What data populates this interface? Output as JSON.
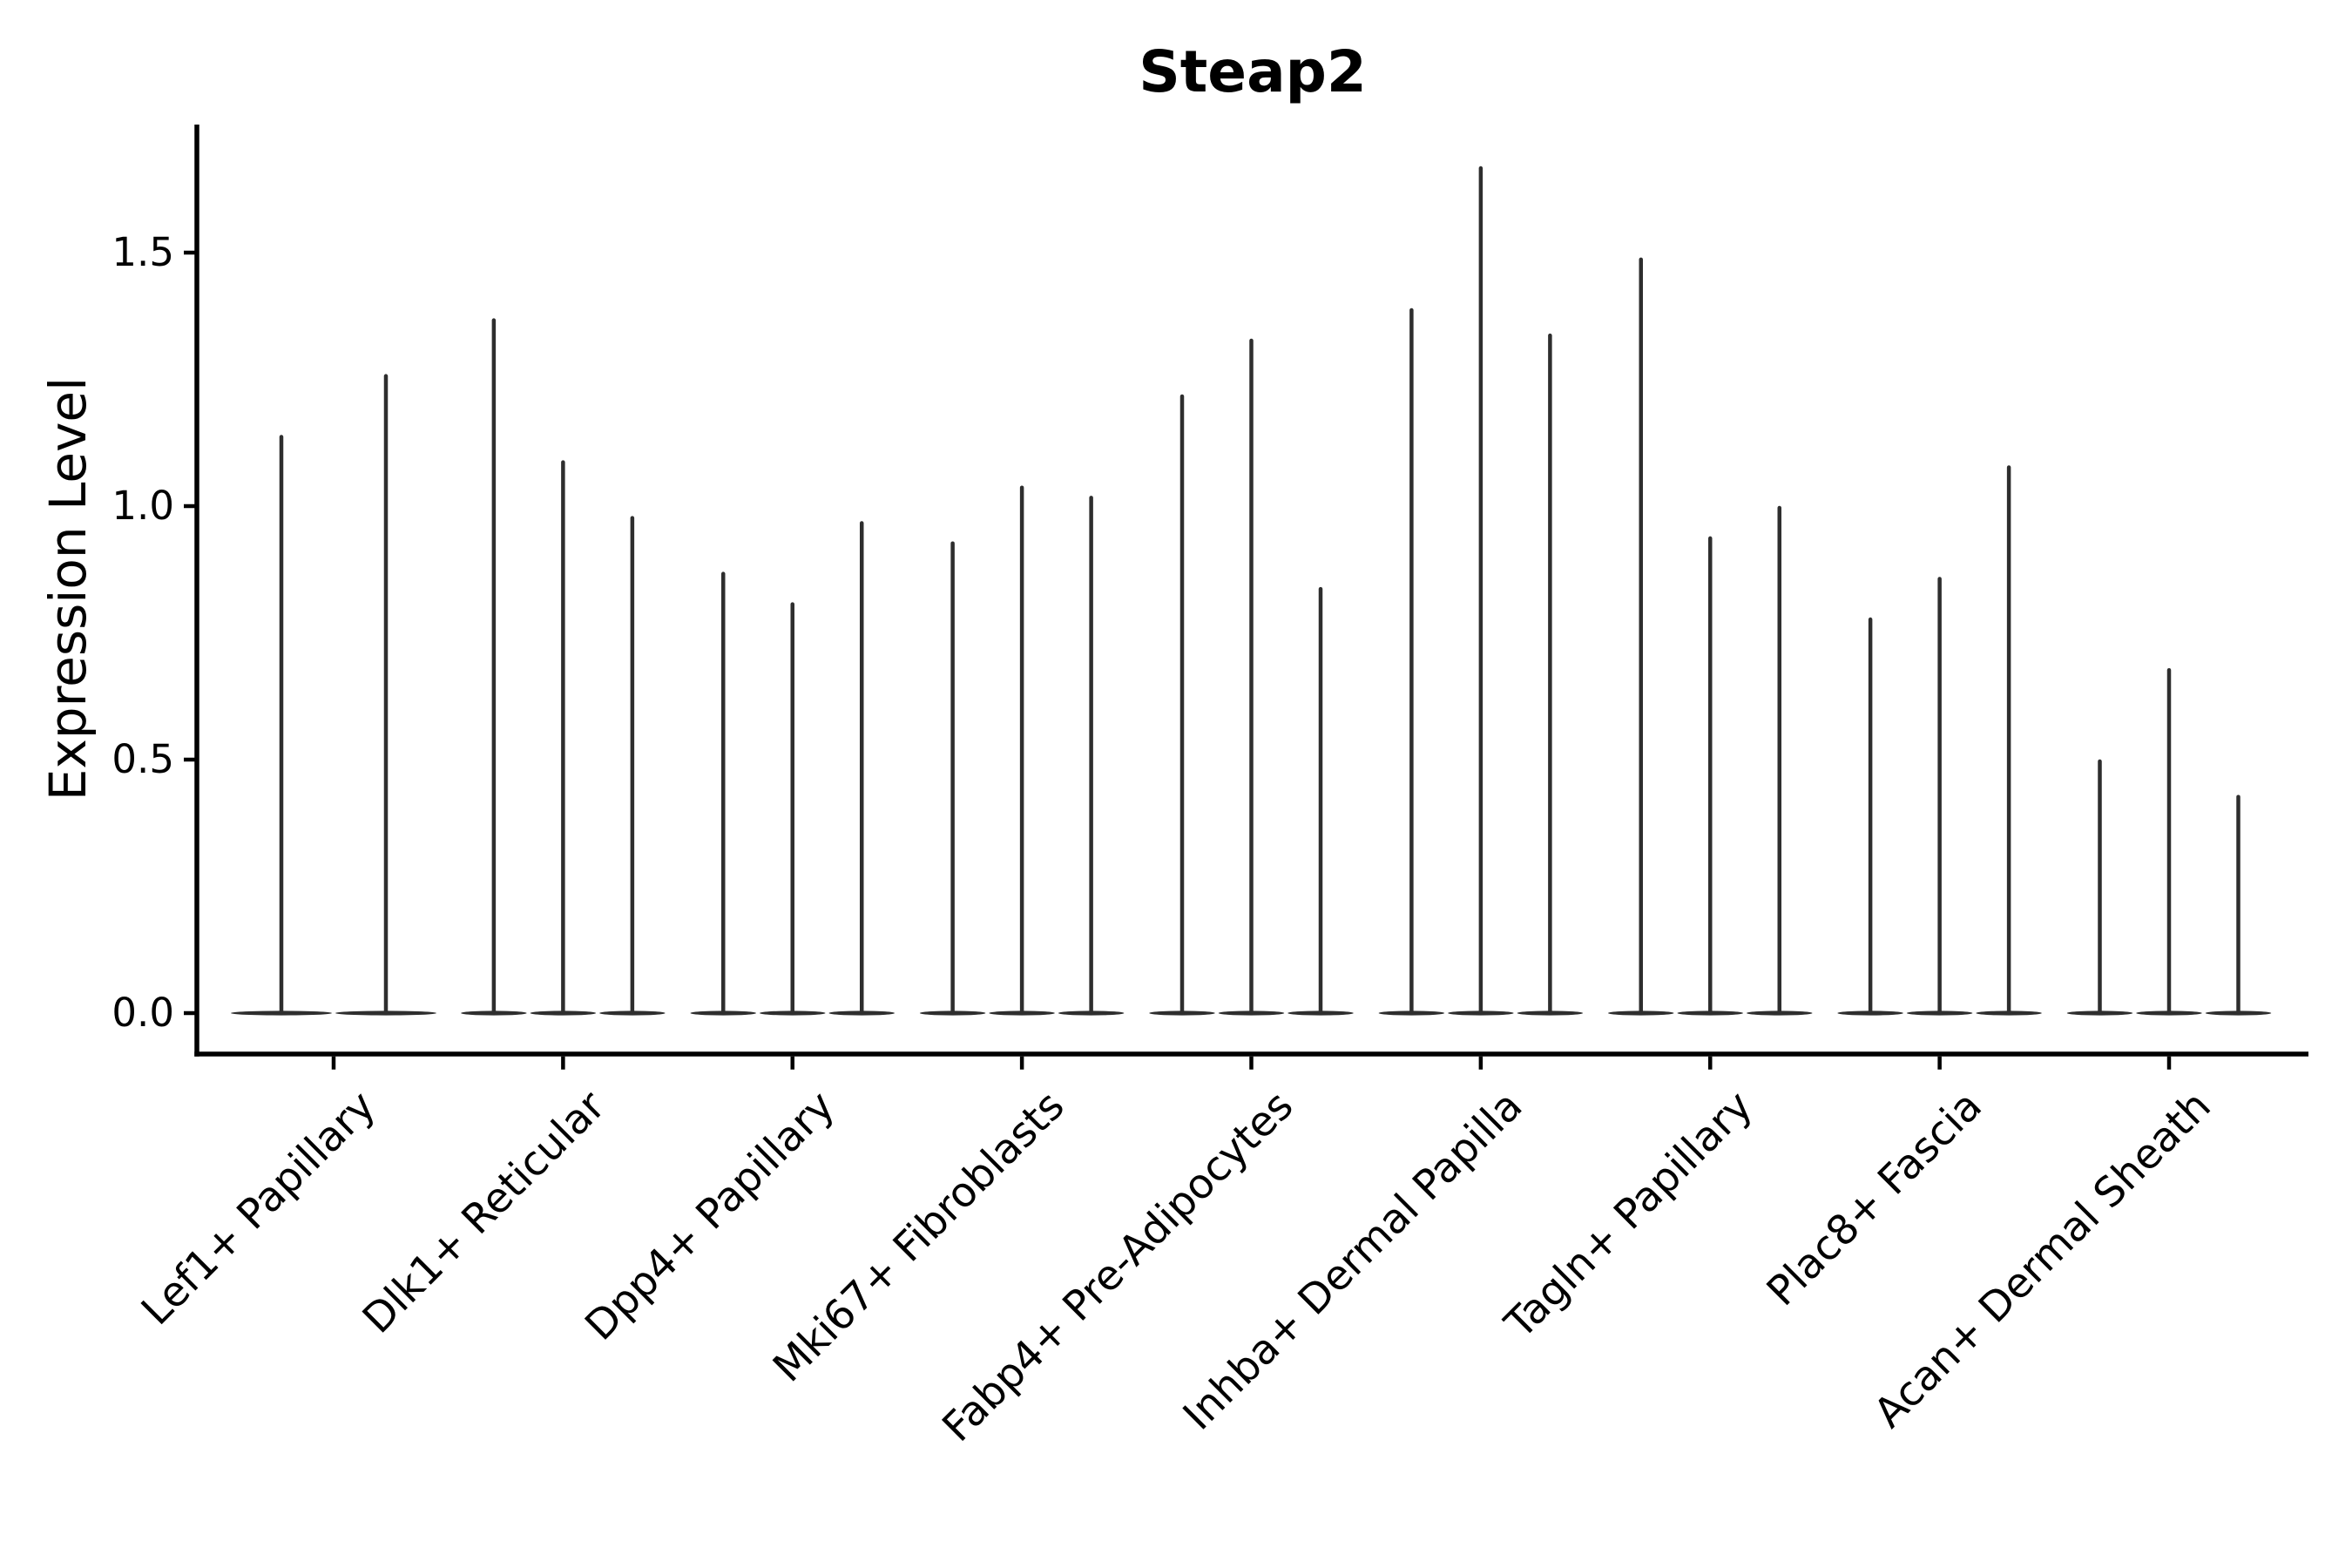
{
  "chart_data": {
    "type": "violin",
    "title": "Steap2",
    "ylabel": "Expression Level",
    "xlabel": "",
    "grid": "off",
    "legend": "none",
    "yticks": [
      0.0,
      0.5,
      1.0,
      1.5
    ],
    "ylim": [
      -0.08,
      1.75
    ],
    "baseline_value": 0.0,
    "categories": [
      "Lef1+ Papillary",
      "Dlk1+ Reticular",
      "Dpp4+ Papillary",
      "Mki67+ Fibroblasts",
      "Fabp4+ Pre-Adipocytes",
      "Inhba+ Dermal Papilla",
      "Tagln+ Papillary",
      "Plac8+ Fascia",
      "Acan+ Dermal Sheath"
    ],
    "groups": [
      {
        "label": "Lef1+ Papillary",
        "violin_max_values": [
          1.14,
          1.26
        ]
      },
      {
        "label": "Dlk1+ Reticular",
        "violin_max_values": [
          1.37,
          1.09,
          0.98
        ]
      },
      {
        "label": "Dpp4+ Papillary",
        "violin_max_values": [
          0.87,
          0.81,
          0.97
        ]
      },
      {
        "label": "Mki67+ Fibroblasts",
        "violin_max_values": [
          0.93,
          1.04,
          1.02
        ]
      },
      {
        "label": "Fabp4+ Pre-Adipocytes",
        "violin_max_values": [
          1.22,
          1.33,
          0.84
        ]
      },
      {
        "label": "Inhba+ Dermal Papilla",
        "violin_max_values": [
          1.39,
          1.67,
          1.34
        ]
      },
      {
        "label": "Tagln+ Papillary",
        "violin_max_values": [
          1.49,
          0.94,
          1.0
        ]
      },
      {
        "label": "Plac8+ Fascia",
        "violin_max_values": [
          0.78,
          0.86,
          1.08
        ]
      },
      {
        "label": "Acan+ Dermal Sheath",
        "violin_max_values": [
          0.5,
          0.68,
          0.43
        ]
      }
    ],
    "description": "Violin plot of gene expression; each group shows per-sample violins collapsed at 0 with thin spikes up to the max expression value.",
    "colors": {
      "violin_stroke": "#2e2e2e",
      "axis": "#000000",
      "background": "#ffffff",
      "text": "#000000"
    }
  }
}
